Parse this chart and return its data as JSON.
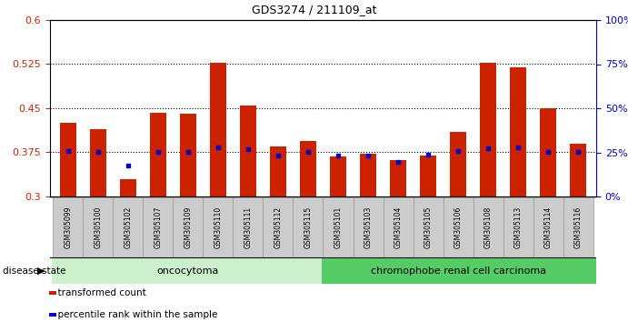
{
  "title": "GDS3274 / 211109_at",
  "samples": [
    "GSM305099",
    "GSM305100",
    "GSM305102",
    "GSM305107",
    "GSM305109",
    "GSM305110",
    "GSM305111",
    "GSM305112",
    "GSM305115",
    "GSM305101",
    "GSM305103",
    "GSM305104",
    "GSM305105",
    "GSM305106",
    "GSM305108",
    "GSM305113",
    "GSM305114",
    "GSM305116"
  ],
  "transformed_counts": [
    0.425,
    0.415,
    0.33,
    0.443,
    0.441,
    0.527,
    0.455,
    0.385,
    0.395,
    0.368,
    0.372,
    0.362,
    0.37,
    0.41,
    0.528,
    0.52,
    0.45,
    0.39
  ],
  "percentile_ranks": [
    0.377,
    0.376,
    0.352,
    0.376,
    0.376,
    0.384,
    0.381,
    0.37,
    0.376,
    0.369,
    0.37,
    0.358,
    0.371,
    0.377,
    0.382,
    0.383,
    0.376,
    0.376
  ],
  "group1_count": 9,
  "group1_label": "oncocytoma",
  "group2_label": "chromophobe renal cell carcinoma",
  "bar_color": "#cc2200",
  "percentile_color": "#0000cc",
  "bar_bottom": 0.3,
  "ylim_left": [
    0.3,
    0.6
  ],
  "ylim_right": [
    0.0,
    1.0
  ],
  "yticks_left": [
    0.3,
    0.375,
    0.45,
    0.525,
    0.6
  ],
  "ytick_labels_left": [
    "0.3",
    "0.375",
    "0.45",
    "0.525",
    "0.6"
  ],
  "yticks_right_vals": [
    0.0,
    0.25,
    0.5,
    0.75,
    1.0
  ],
  "ytick_labels_right": [
    "0%",
    "25%",
    "50%",
    "75%",
    "100%"
  ],
  "dotted_lines": [
    0.375,
    0.45,
    0.525
  ],
  "group1_bg": "#ccf0cc",
  "group2_bg": "#55cc66",
  "xtick_bg": "#cccccc",
  "xtick_edge": "#999999"
}
